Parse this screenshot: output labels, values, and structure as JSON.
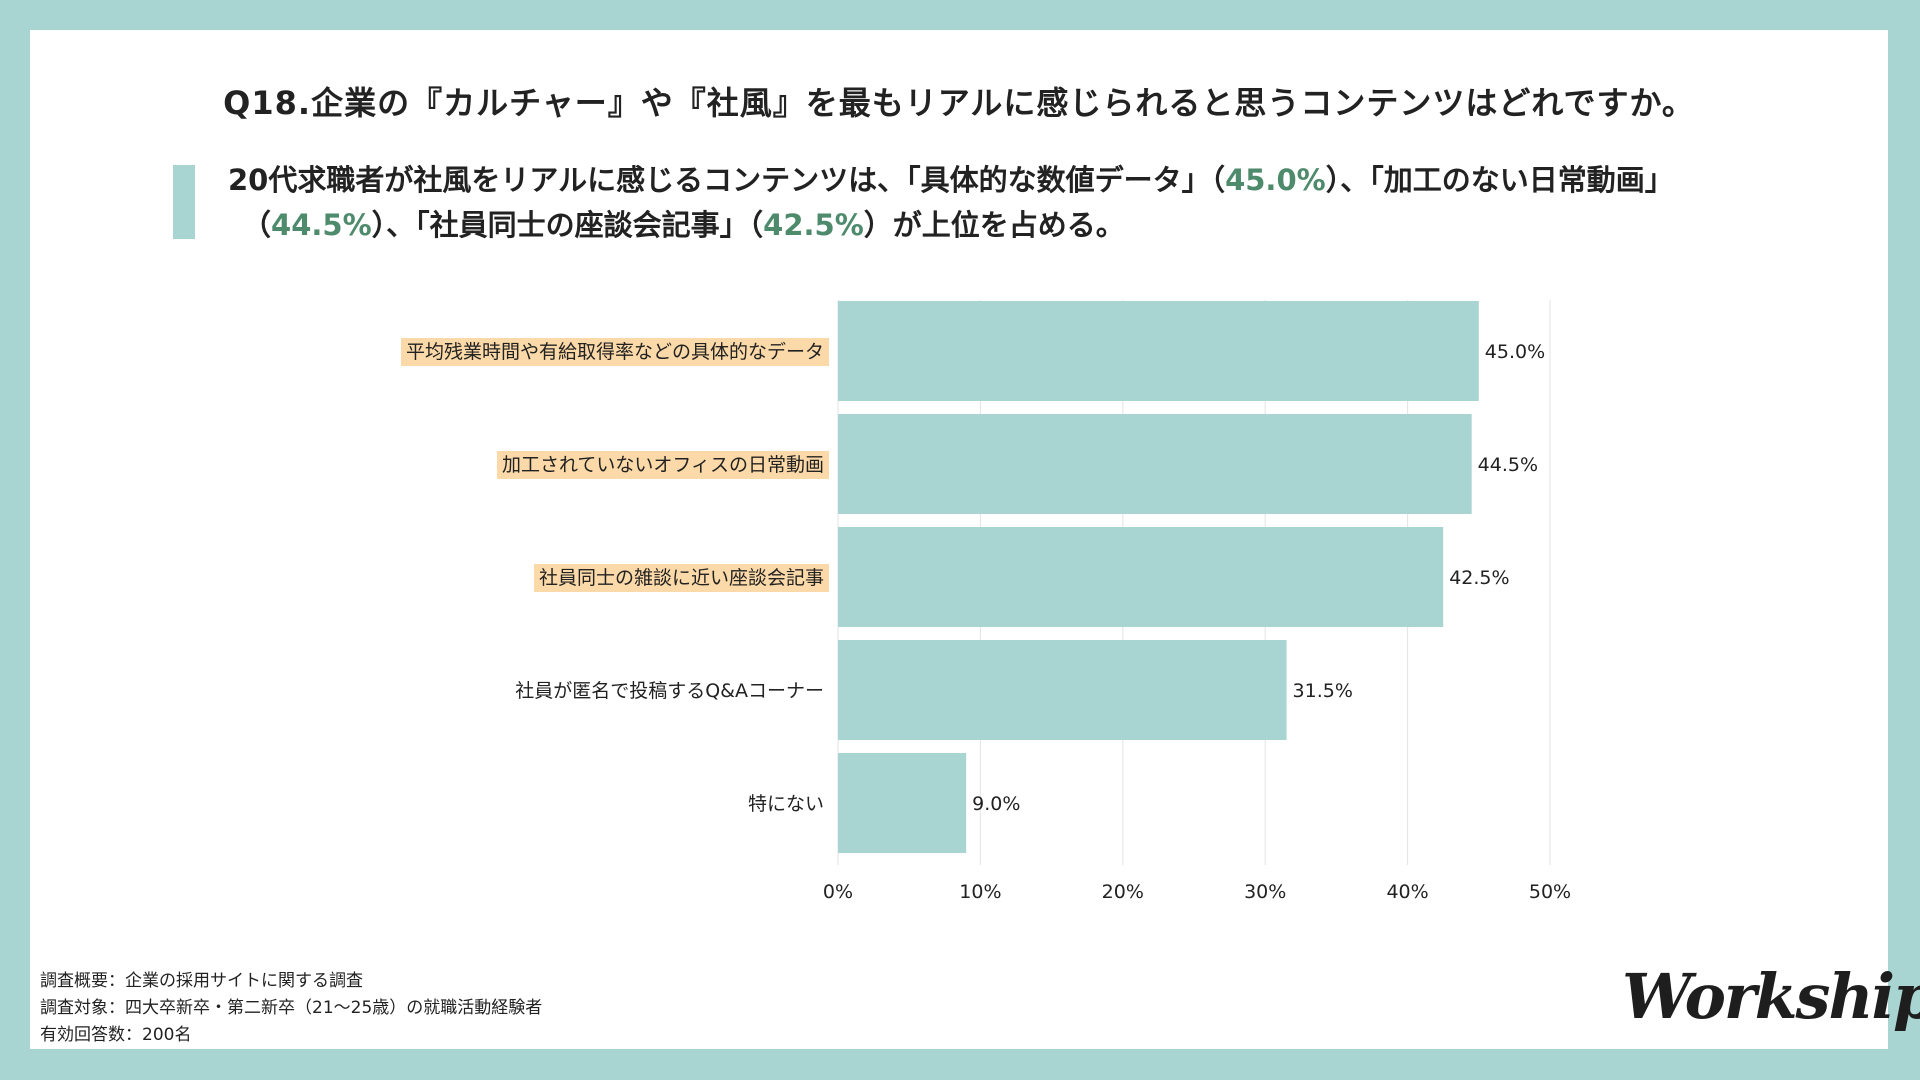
{
  "title": "Q18.企業の『カルチャー』や『社風』を最もリアルに感じられると思うコンテンツはどれですか。",
  "summary": {
    "l1_a": "20代求職者が社風をリアルに感じるコンテンツは、「具体的な数値データ」（",
    "l1_p1": "45.0%",
    "l1_b": "）、「加工のない日常動画」",
    "l2_a": "（",
    "l2_p2": "44.5%",
    "l2_b": "）、「社員同士の座談会記事」（",
    "l2_p3": "42.5%",
    "l2_c": "）が上位を占める。"
  },
  "colors": {
    "bar": "#a8d5d1",
    "highlight": "#fcd9a8",
    "accent_text": "#4e8a6c",
    "frame": "#a8d5d1"
  },
  "chart_data": {
    "type": "bar",
    "orientation": "horizontal",
    "categories": [
      "平均残業時間や有給取得率などの具体的なデータ",
      "加工されていないオフィスの日常動画",
      "社員同士の雑談に近い座談会記事",
      "社員が匿名で投稿するQ&Aコーナー",
      "特にない"
    ],
    "values": [
      45.0,
      44.5,
      42.5,
      31.5,
      9.0
    ],
    "value_labels": [
      "45.0%",
      "44.5%",
      "42.5%",
      "31.5%",
      "9.0%"
    ],
    "highlighted": [
      true,
      true,
      true,
      false,
      false
    ],
    "xlim": [
      0,
      50
    ],
    "xticks": [
      0,
      10,
      20,
      30,
      40,
      50
    ],
    "xtick_labels": [
      "0%",
      "10%",
      "20%",
      "30%",
      "40%",
      "50%"
    ],
    "grid": true
  },
  "footer": {
    "line1": "調査概要：企業の採用サイトに関する調査",
    "line2": "調査対象：四大卒新卒・第二新卒（21〜25歳）の就職活動経験者",
    "line3": "有効回答数：200名"
  },
  "logo": "Workship"
}
